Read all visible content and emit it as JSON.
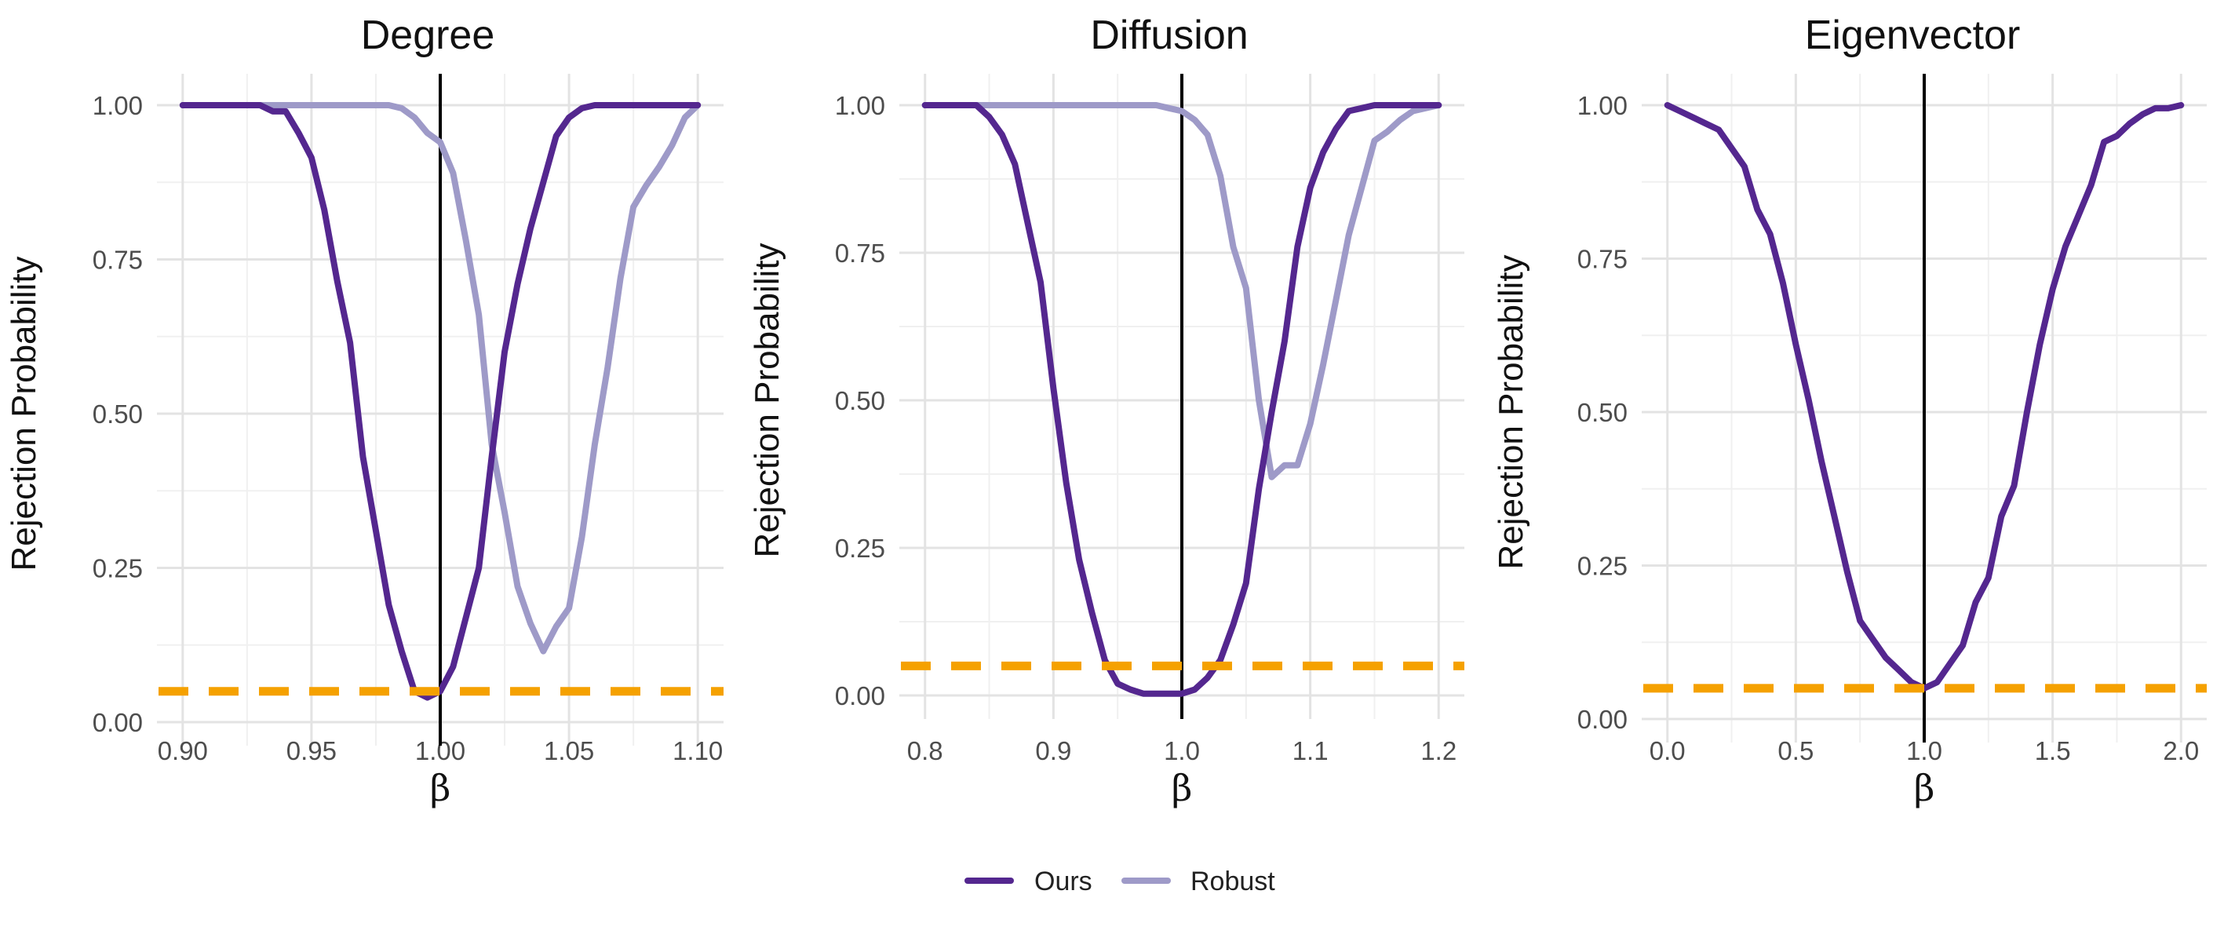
{
  "colors": {
    "Ours": "#54278f",
    "Robust": "#9e9ac8",
    "reference": "#f5a100"
  },
  "legend": {
    "position": "bottom",
    "items": [
      "Ours",
      "Robust"
    ]
  },
  "chart_data": [
    {
      "type": "line",
      "title": "Degree",
      "xlabel": "β",
      "ylabel": "Rejection Probability",
      "xlim": [
        0.89,
        1.11
      ],
      "ylim": [
        0,
        1.0
      ],
      "xticks": [
        0.9,
        0.95,
        1.0,
        1.05,
        1.1
      ],
      "xtick_labels": [
        "0.90",
        "0.95",
        "1.00",
        "1.05",
        "1.10"
      ],
      "yticks": [
        0,
        0.25,
        0.5,
        0.75,
        1.0
      ],
      "ytick_labels": [
        "0.00",
        "0.25",
        "0.50",
        "0.75",
        "1.00"
      ],
      "vline": 1.0,
      "hline": 0.05,
      "series": [
        {
          "name": "Ours",
          "x": [
            0.9,
            0.91,
            0.92,
            0.93,
            0.935,
            0.94,
            0.945,
            0.95,
            0.955,
            0.96,
            0.965,
            0.97,
            0.975,
            0.98,
            0.985,
            0.99,
            0.995,
            1.0,
            1.005,
            1.01,
            1.015,
            1.02,
            1.025,
            1.03,
            1.035,
            1.04,
            1.045,
            1.05,
            1.055,
            1.06,
            1.065,
            1.07,
            1.08,
            1.09,
            1.1
          ],
          "y": [
            1.0,
            1.0,
            1.0,
            1.0,
            0.99,
            0.99,
            0.955,
            0.915,
            0.83,
            0.715,
            0.615,
            0.43,
            0.31,
            0.19,
            0.115,
            0.05,
            0.04,
            0.05,
            0.09,
            0.17,
            0.25,
            0.43,
            0.6,
            0.71,
            0.8,
            0.875,
            0.95,
            0.98,
            0.995,
            1.0,
            1.0,
            1.0,
            1.0,
            1.0,
            1.0
          ]
        },
        {
          "name": "Robust",
          "x": [
            0.9,
            0.92,
            0.94,
            0.96,
            0.98,
            0.985,
            0.99,
            0.995,
            1.0,
            1.005,
            1.01,
            1.015,
            1.02,
            1.025,
            1.03,
            1.035,
            1.04,
            1.045,
            1.05,
            1.055,
            1.06,
            1.065,
            1.07,
            1.075,
            1.08,
            1.085,
            1.09,
            1.095,
            1.1
          ],
          "y": [
            1.0,
            1.0,
            1.0,
            1.0,
            1.0,
            0.995,
            0.98,
            0.955,
            0.94,
            0.89,
            0.78,
            0.66,
            0.45,
            0.34,
            0.22,
            0.16,
            0.115,
            0.155,
            0.185,
            0.3,
            0.45,
            0.575,
            0.72,
            0.835,
            0.87,
            0.9,
            0.935,
            0.98,
            1.0
          ]
        }
      ]
    },
    {
      "type": "line",
      "title": "Diffusion",
      "xlabel": "β",
      "ylabel": "Rejection Probability",
      "xlim": [
        0.78,
        1.22
      ],
      "ylim": [
        0,
        1.0
      ],
      "xticks": [
        0.8,
        0.9,
        1.0,
        1.1,
        1.2
      ],
      "xtick_labels": [
        "0.8",
        "0.9",
        "1.0",
        "1.1",
        "1.2"
      ],
      "yticks": [
        0,
        0.25,
        0.5,
        0.75,
        1.0
      ],
      "ytick_labels": [
        "0.00",
        "0.25",
        "0.50",
        "0.75",
        "1.00"
      ],
      "vline": 1.0,
      "hline": 0.05,
      "series": [
        {
          "name": "Ours",
          "x": [
            0.8,
            0.82,
            0.84,
            0.85,
            0.86,
            0.87,
            0.88,
            0.89,
            0.9,
            0.91,
            0.92,
            0.93,
            0.94,
            0.95,
            0.96,
            0.97,
            0.98,
            0.99,
            1.0,
            1.01,
            1.02,
            1.03,
            1.04,
            1.05,
            1.06,
            1.07,
            1.08,
            1.09,
            1.1,
            1.11,
            1.12,
            1.13,
            1.14,
            1.15,
            1.16,
            1.18,
            1.2
          ],
          "y": [
            1.0,
            1.0,
            1.0,
            0.98,
            0.95,
            0.9,
            0.8,
            0.7,
            0.52,
            0.36,
            0.23,
            0.14,
            0.06,
            0.02,
            0.01,
            0.003,
            0.003,
            0.003,
            0.003,
            0.01,
            0.03,
            0.06,
            0.12,
            0.19,
            0.35,
            0.48,
            0.6,
            0.76,
            0.86,
            0.92,
            0.96,
            0.99,
            0.995,
            1.0,
            1.0,
            1.0,
            1.0
          ]
        },
        {
          "name": "Robust",
          "x": [
            0.8,
            0.85,
            0.9,
            0.95,
            0.98,
            0.99,
            1.0,
            1.01,
            1.02,
            1.03,
            1.04,
            1.05,
            1.06,
            1.07,
            1.08,
            1.09,
            1.1,
            1.11,
            1.12,
            1.13,
            1.14,
            1.15,
            1.16,
            1.17,
            1.18,
            1.2
          ],
          "y": [
            1.0,
            1.0,
            1.0,
            1.0,
            1.0,
            0.995,
            0.99,
            0.975,
            0.95,
            0.88,
            0.76,
            0.69,
            0.5,
            0.37,
            0.39,
            0.39,
            0.46,
            0.56,
            0.67,
            0.78,
            0.86,
            0.94,
            0.955,
            0.975,
            0.99,
            1.0
          ]
        }
      ]
    },
    {
      "type": "line",
      "title": "Eigenvector",
      "xlabel": "β",
      "ylabel": "Rejection Probability",
      "xlim": [
        -0.1,
        2.1
      ],
      "ylim": [
        0,
        1.0
      ],
      "xticks": [
        0.0,
        0.5,
        1.0,
        1.5,
        2.0
      ],
      "xtick_labels": [
        "0.0",
        "0.5",
        "1.0",
        "1.5",
        "2.0"
      ],
      "yticks": [
        0,
        0.25,
        0.5,
        0.75,
        1.0
      ],
      "ytick_labels": [
        "0.00",
        "0.25",
        "0.50",
        "0.75",
        "1.00"
      ],
      "vline": 1.0,
      "hline": 0.05,
      "series": [
        {
          "name": "Ours",
          "x": [
            0.0,
            0.05,
            0.1,
            0.15,
            0.2,
            0.25,
            0.3,
            0.35,
            0.4,
            0.45,
            0.5,
            0.55,
            0.6,
            0.65,
            0.7,
            0.75,
            0.8,
            0.85,
            0.9,
            0.95,
            1.0,
            1.05,
            1.1,
            1.15,
            1.2,
            1.25,
            1.3,
            1.35,
            1.4,
            1.45,
            1.5,
            1.55,
            1.6,
            1.65,
            1.7,
            1.75,
            1.8,
            1.85,
            1.9,
            1.95,
            2.0
          ],
          "y": [
            1.0,
            0.99,
            0.98,
            0.97,
            0.96,
            0.93,
            0.9,
            0.83,
            0.79,
            0.71,
            0.61,
            0.52,
            0.42,
            0.33,
            0.24,
            0.16,
            0.13,
            0.1,
            0.08,
            0.06,
            0.05,
            0.06,
            0.09,
            0.12,
            0.19,
            0.23,
            0.33,
            0.38,
            0.5,
            0.61,
            0.7,
            0.77,
            0.82,
            0.87,
            0.94,
            0.95,
            0.97,
            0.985,
            0.995,
            0.995,
            1.0
          ]
        }
      ]
    }
  ]
}
